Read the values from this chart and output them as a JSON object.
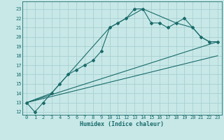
{
  "title": "",
  "xlabel": "Humidex (Indice chaleur)",
  "bg_color": "#c8e8e8",
  "grid_color": "#a8d0d0",
  "line_color": "#1a6b6b",
  "xlim": [
    -0.5,
    23.5
  ],
  "ylim": [
    11.7,
    23.8
  ],
  "xticks": [
    0,
    1,
    2,
    3,
    4,
    5,
    6,
    7,
    8,
    9,
    10,
    11,
    12,
    13,
    14,
    15,
    16,
    17,
    18,
    19,
    20,
    21,
    22,
    23
  ],
  "yticks": [
    12,
    13,
    14,
    15,
    16,
    17,
    18,
    19,
    20,
    21,
    22,
    23
  ],
  "line1_x": [
    0,
    1,
    2,
    3,
    4,
    5,
    6,
    7,
    8,
    9,
    10,
    11,
    12,
    13,
    14,
    15,
    16,
    17,
    18,
    19,
    20,
    21,
    22,
    23
  ],
  "line1_y": [
    13.0,
    12.0,
    13.0,
    14.0,
    15.0,
    16.0,
    16.5,
    17.0,
    17.5,
    18.5,
    21.0,
    21.5,
    22.0,
    23.0,
    23.0,
    21.5,
    21.5,
    21.0,
    21.5,
    22.0,
    21.0,
    20.0,
    19.5,
    19.5
  ],
  "line2_x": [
    0,
    3,
    10,
    14,
    18,
    20,
    21,
    22,
    23
  ],
  "line2_y": [
    13.0,
    14.0,
    21.0,
    23.0,
    21.5,
    21.0,
    20.0,
    19.5,
    19.5
  ],
  "line3_x": [
    0,
    23
  ],
  "line3_y": [
    13.0,
    19.5
  ],
  "line4_x": [
    0,
    23
  ],
  "line4_y": [
    13.0,
    18.0
  ]
}
